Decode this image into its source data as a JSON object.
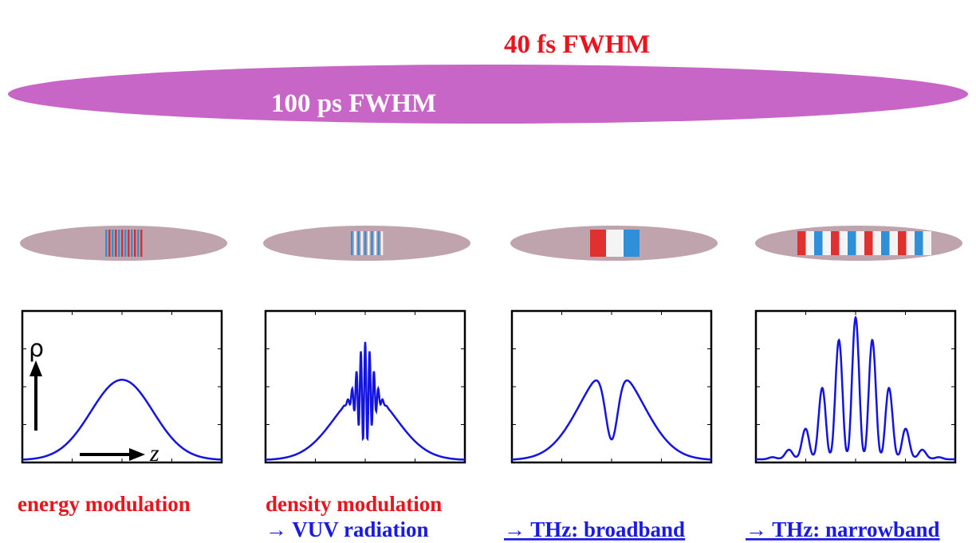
{
  "header": {
    "short_pulse": "40 fs FWHM",
    "long_pulse": "100 ps FWHM"
  },
  "axes": {
    "y_label": "ρ",
    "x_label": "z"
  },
  "captions": {
    "energy": "energy modulation",
    "density": "density modulation",
    "vuv": "→ VUV radiation",
    "broadband": "→ THz: broadband",
    "narrowband": "→ THz: narrowband"
  }
}
